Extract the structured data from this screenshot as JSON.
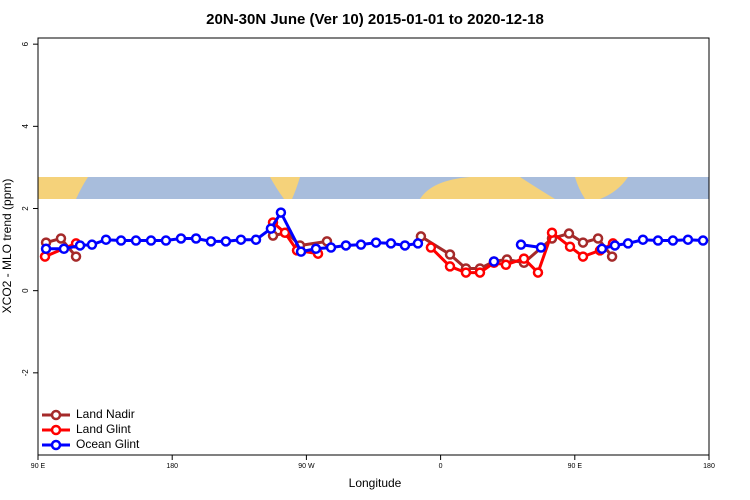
{
  "chart_data": {
    "type": "line",
    "title": "20N-30N June (Ver 10)   2015-01-01 to 2020-12-18",
    "xlabel": "Longitude",
    "ylabel": "XCO2 - MLO trend (ppm)",
    "xlim": [
      90,
      540
    ],
    "ylim": [
      -4.0,
      6.15
    ],
    "xticks": [
      {
        "value": 90,
        "label": "90 E"
      },
      180,
      {
        "value": 270,
        "label": "90 W"
      },
      {
        "value": 360,
        "label": "0"
      },
      {
        "value": 450,
        "label": "90 E"
      },
      {
        "value": 540,
        "label": "180"
      }
    ],
    "yticks": [
      -2,
      0,
      2,
      4,
      6
    ],
    "legend": "bottom-left",
    "series": [
      {
        "name": "Land Nadir",
        "color": "#a52a2a",
        "x": [
          95.4,
          105.4,
          115.5,
          200,
          247.6,
          257,
          265.7,
          283.8,
          350,
          346.8,
          366.3,
          377,
          386.4,
          395.8,
          404.5,
          415.9,
          434.7,
          446.1,
          455.5,
          465.6,
          475
        ],
        "values": [
          1.17,
          1.27,
          0.83,
          null,
          1.34,
          1.41,
          1.1,
          1.2,
          null,
          1.32,
          0.88,
          0.54,
          0.54,
          0.71,
          0.76,
          0.68,
          1.27,
          1.39,
          1.17,
          1.27,
          0.83
        ]
      },
      {
        "name": "Land Glint",
        "color": "#ff0000",
        "x": [
          94.7,
          115.5,
          200,
          247.6,
          255.6,
          263.7,
          277.8,
          350,
          353.5,
          366.3,
          377,
          386.4,
          395.8,
          403.8,
          415.9,
          425.3,
          434.7,
          446.8,
          455.5,
          466.9,
          475.6
        ],
        "values": [
          0.83,
          1.15,
          null,
          1.66,
          1.41,
          0.98,
          0.9,
          null,
          1.05,
          0.59,
          0.44,
          0.44,
          0.68,
          0.63,
          0.78,
          0.44,
          1.41,
          1.07,
          0.83,
          0.98,
          1.15
        ]
      },
      {
        "name": "Ocean Glint",
        "color": "#0000ff",
        "x": [
          95.4,
          107.4,
          118.2,
          126.2,
          135.6,
          145.7,
          155.7,
          165.8,
          175.8,
          185.9,
          196,
          206,
          216,
          226.1,
          236.2,
          246.2,
          252.9,
          266.4,
          276.4,
          286.5,
          296.5,
          306.6,
          316.7,
          326.7,
          336.1,
          344.8,
          370,
          395.8,
          405,
          413.9,
          427.3,
          450,
          468.2,
          476.9,
          485.7,
          495.7,
          505.8,
          515.8,
          525.9,
          536
        ],
        "values": [
          1.02,
          1.02,
          1.1,
          1.12,
          1.24,
          1.22,
          1.22,
          1.22,
          1.22,
          1.27,
          1.27,
          1.2,
          1.2,
          1.24,
          1.24,
          1.51,
          1.9,
          0.95,
          1.02,
          1.05,
          1.1,
          1.12,
          1.17,
          1.15,
          1.1,
          1.15,
          null,
          0.71,
          null,
          1.12,
          1.05,
          null,
          1.02,
          1.1,
          1.15,
          1.24,
          1.22,
          1.22,
          1.24,
          1.22
        ]
      }
    ]
  }
}
